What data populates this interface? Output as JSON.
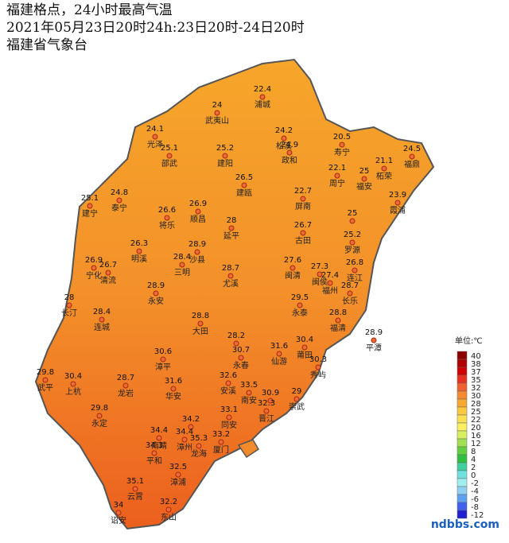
{
  "header": {
    "lines": [
      "福建格点，24小时最高气温",
      "2021年05月23日20时24h:23日20时-24日20时",
      "福建省气象台"
    ]
  },
  "stations": [
    {
      "name": "浦城",
      "value": 22.4
    },
    {
      "name": "武夷山",
      "value": 24
    },
    {
      "name": "光泽",
      "value": 24.1
    },
    {
      "name": "邵武",
      "value": 25.1
    },
    {
      "name": "建阳",
      "value": 25.2
    },
    {
      "name": "松溪",
      "value": 24.2
    },
    {
      "name": "政和",
      "value": 24.9
    },
    {
      "name": "寿宁",
      "value": 20.5
    },
    {
      "name": "周宁",
      "value": 22.1
    },
    {
      "name": "福安",
      "value": 25
    },
    {
      "name": "柘荣",
      "value": 21.1
    },
    {
      "name": "福鼎",
      "value": 24.5
    },
    {
      "name": "霞浦",
      "value": 23.9
    },
    {
      "name": "建瓯",
      "value": 26.5
    },
    {
      "name": "屏南",
      "value": 22.7
    },
    {
      "name": "建宁",
      "value": 25.1
    },
    {
      "name": "泰宁",
      "value": 24.8
    },
    {
      "name": "将乐",
      "value": 26.6
    },
    {
      "name": "顺昌",
      "value": 26.9
    },
    {
      "name": "延平",
      "value": 28
    },
    {
      "name": "古田",
      "value": 26.7
    },
    {
      "value": 25
    },
    {
      "name": "罗源",
      "value": 25.2
    },
    {
      "name": "明溪",
      "value": 26.3
    },
    {
      "name": "沙县",
      "value": 28.9
    },
    {
      "name": "三明",
      "value": 28.4
    },
    {
      "name": "宁化",
      "value": 26.9
    },
    {
      "name": "清流",
      "value": 26.7
    },
    {
      "name": "尤溪",
      "value": 28.7
    },
    {
      "name": "闽清",
      "value": 27.6
    },
    {
      "name": "闽侯",
      "value": 27.3
    },
    {
      "name": "福州",
      "value": 27.4
    },
    {
      "name": "连江",
      "value": 26.8
    },
    {
      "name": "长乐",
      "value": 28.7
    },
    {
      "name": "永安",
      "value": 28.9
    },
    {
      "name": "长汀",
      "value": 28
    },
    {
      "name": "连城",
      "value": 28.4
    },
    {
      "name": "永泰",
      "value": 29.5
    },
    {
      "name": "福清",
      "value": 28.8
    },
    {
      "name": "平潭",
      "value": 28.9
    },
    {
      "name": "大田",
      "value": 28.8
    },
    {
      "value": 28.2
    },
    {
      "name": "永春",
      "value": 30.7
    },
    {
      "name": "仙游",
      "value": 31.6
    },
    {
      "name": "莆田",
      "value": 30.4
    },
    {
      "name": "秀屿",
      "value": 30.3
    },
    {
      "name": "漳平",
      "value": 30.6
    },
    {
      "name": "华安",
      "value": 31.6
    },
    {
      "name": "安溪",
      "value": 32.6
    },
    {
      "name": "南安",
      "value": 33.5
    },
    {
      "value": 30.9
    },
    {
      "name": "晋江",
      "value": 32.3
    },
    {
      "name": "同安",
      "value": 33.1
    },
    {
      "name": "崇武",
      "value": 29
    },
    {
      "name": "武平",
      "value": 29.8
    },
    {
      "name": "上杭",
      "value": 30.4
    },
    {
      "name": "龙岩",
      "value": 28.7
    },
    {
      "name": "永定",
      "value": 29.8
    },
    {
      "value": 34.2
    },
    {
      "name": "南靖",
      "value": 34.4
    },
    {
      "name": "漳州",
      "value": 34.4
    },
    {
      "name": "龙海",
      "value": 35.3
    },
    {
      "name": "平和",
      "value": 34.3
    },
    {
      "name": "厦门",
      "value": 33.2
    },
    {
      "name": "漳浦",
      "value": 32.5
    },
    {
      "name": "云霄",
      "value": 35.1
    },
    {
      "name": "诏安",
      "value": 34
    },
    {
      "name": "东山",
      "value": 32.2
    }
  ],
  "legend": {
    "title": "单位:℃",
    "items": [
      {
        "value": 40,
        "color": "#8b0000"
      },
      {
        "value": 38,
        "color": "#b00000"
      },
      {
        "value": 37,
        "color": "#d00000"
      },
      {
        "value": 35,
        "color": "#e83020"
      },
      {
        "value": 32,
        "color": "#f06030"
      },
      {
        "value": 30,
        "color": "#f58a30"
      },
      {
        "value": 28,
        "color": "#f8a830"
      },
      {
        "value": 25,
        "color": "#fbc840"
      },
      {
        "value": 22,
        "color": "#fde050"
      },
      {
        "value": 20,
        "color": "#f8f060"
      },
      {
        "value": 16,
        "color": "#d8f060"
      },
      {
        "value": 12,
        "color": "#a0e050"
      },
      {
        "value": 8,
        "color": "#60d040"
      },
      {
        "value": 4,
        "color": "#30c040"
      },
      {
        "value": 2,
        "color": "#40d0a0"
      },
      {
        "value": 0,
        "color": "#70e0e0"
      },
      {
        "value": -2,
        "color": "#a0f0f0"
      },
      {
        "value": -4,
        "color": "#90d0f0"
      },
      {
        "value": -6,
        "color": "#60a0f0"
      },
      {
        "value": -8,
        "color": "#4060f0"
      },
      {
        "value": -12,
        "color": "#2020d0"
      }
    ]
  },
  "watermark": "ndbbs.com"
}
